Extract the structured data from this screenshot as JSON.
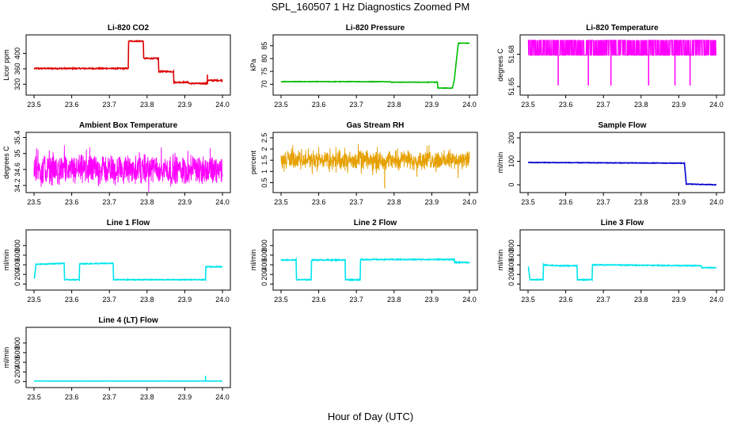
{
  "figure": {
    "title": "SPL_160507  1 Hz Diagnostics Zoomed PM",
    "xlabel": "Hour of Day (UTC)"
  },
  "chart_data": [
    {
      "type": "line",
      "title": "Li-820 CO2",
      "ylabel": "Licor ppm",
      "color": "#dd0000",
      "style": "step",
      "xlim": [
        23.5,
        24.0
      ],
      "ylim": [
        300,
        440
      ],
      "yticks": [
        320,
        360,
        400
      ],
      "x": [
        23.5,
        23.75,
        23.751,
        23.79,
        23.791,
        23.83,
        23.831,
        23.87,
        23.871,
        23.91,
        23.911,
        23.96,
        23.961,
        24.0
      ],
      "y": [
        361,
        361,
        432,
        432,
        387,
        387,
        353,
        353,
        325,
        325,
        322,
        322,
        330,
        330
      ],
      "noise": 1.5,
      "spike": {
        "x": 23.96,
        "y": 345
      }
    },
    {
      "type": "line",
      "title": "Li-820 Pressure",
      "ylabel": "kPa",
      "color": "#00bb00",
      "style": "step",
      "xlim": [
        23.5,
        24.0
      ],
      "ylim": [
        67,
        88
      ],
      "yticks": [
        70,
        75,
        80,
        85
      ],
      "x": [
        23.5,
        23.79,
        23.791,
        23.915,
        23.916,
        23.955,
        23.96,
        23.97,
        23.971,
        24.0
      ],
      "y": [
        71,
        71,
        70.8,
        70.8,
        68.5,
        68.5,
        72,
        85.5,
        86,
        86
      ],
      "noise": 0.1
    },
    {
      "type": "line",
      "title": "Li-820 Temperature",
      "ylabel": "degrees C",
      "color": "#ff00ff",
      "style": "band",
      "xlim": [
        23.5,
        24.0
      ],
      "ylim": [
        51.645,
        51.695
      ],
      "yticks": [
        51.65,
        51.68
      ],
      "bandLow": 51.679,
      "bandHigh": 51.693,
      "dips": [
        23.58,
        23.66,
        23.72,
        23.82,
        23.89,
        23.93
      ]
    },
    {
      "type": "line",
      "title": "Ambient Box Temperature",
      "ylabel": "degrees C",
      "color": "#ff00ff",
      "style": "band",
      "xlim": [
        23.5,
        24.0
      ],
      "ylim": [
        34.1,
        35.45
      ],
      "yticks": [
        34.2,
        34.6,
        35.0,
        35.4
      ],
      "bandLow": 34.3,
      "bandHigh": 34.9,
      "spread": 0.22
    },
    {
      "type": "line",
      "title": "Gas Stream RH",
      "ylabel": "percent",
      "color": "#e6a000",
      "style": "band",
      "xlim": [
        23.5,
        24.0
      ],
      "ylim": [
        0.2,
        2.6
      ],
      "yticks": [
        0.5,
        1.0,
        1.5,
        2.0,
        2.5
      ],
      "bandLow": 1.2,
      "bandHigh": 1.8,
      "spread": 0.35,
      "spike": {
        "x": 23.775,
        "y": 0.25
      }
    },
    {
      "type": "line",
      "title": "Sample Flow",
      "ylabel": "ml/min",
      "color": "#0000cc",
      "style": "step",
      "xlim": [
        23.5,
        24.0
      ],
      "ylim": [
        -20,
        210
      ],
      "yticks": [
        0,
        100,
        200
      ],
      "x": [
        23.5,
        23.91,
        23.915,
        23.92,
        24.0
      ],
      "y": [
        95,
        92,
        92,
        3,
        0
      ],
      "noise": 1.2
    },
    {
      "type": "line",
      "title": "Line 1 Flow",
      "ylabel": "ml/min",
      "color": "#00e5ee",
      "style": "step",
      "xlim": [
        23.5,
        24.0
      ],
      "ylim": [
        -60,
        1060
      ],
      "yticks": [
        0,
        200,
        400,
        600,
        800
      ],
      "x": [
        23.5,
        23.501,
        23.505,
        23.58,
        23.581,
        23.62,
        23.621,
        23.71,
        23.711,
        23.955,
        23.956,
        24.0
      ],
      "y": [
        120,
        120,
        410,
        430,
        90,
        90,
        420,
        430,
        90,
        90,
        360,
        360
      ],
      "noise": 8
    },
    {
      "type": "line",
      "title": "Line 2 Flow",
      "ylabel": "ml/min",
      "color": "#00e5ee",
      "style": "step",
      "xlim": [
        23.5,
        24.0
      ],
      "ylim": [
        -60,
        1060
      ],
      "yticks": [
        0,
        200,
        400,
        600,
        800
      ],
      "x": [
        23.5,
        23.54,
        23.541,
        23.58,
        23.581,
        23.67,
        23.671,
        23.71,
        23.711,
        23.96,
        23.961,
        24.0
      ],
      "y": [
        500,
        500,
        90,
        90,
        500,
        500,
        90,
        90,
        510,
        510,
        450,
        450
      ],
      "noise": 10
    },
    {
      "type": "line",
      "title": "Line 3 Flow",
      "ylabel": "ml/min",
      "color": "#00e5ee",
      "style": "step",
      "xlim": [
        23.5,
        24.0
      ],
      "ylim": [
        -60,
        1060
      ],
      "yticks": [
        0,
        200,
        400,
        600,
        800
      ],
      "x": [
        23.5,
        23.501,
        23.505,
        23.54,
        23.541,
        23.58,
        23.581,
        23.63,
        23.631,
        23.67,
        23.671,
        23.96,
        23.961,
        24.0
      ],
      "y": [
        350,
        350,
        90,
        90,
        400,
        380,
        380,
        380,
        90,
        90,
        400,
        380,
        340,
        340
      ],
      "noise": 9
    },
    {
      "type": "line",
      "title": "Line 4 (LT) Flow",
      "ylabel": "ml/min",
      "color": "#00e5ee",
      "style": "step",
      "xlim": [
        23.5,
        24.0
      ],
      "ylim": [
        -60,
        1060
      ],
      "yticks": [
        0,
        200,
        400,
        600,
        800
      ],
      "x": [
        23.5,
        24.0
      ],
      "y": [
        10,
        10
      ],
      "noise": 1,
      "spike": {
        "x": 23.955,
        "y": 120
      }
    }
  ],
  "xticks": [
    23.5,
    23.6,
    23.7,
    23.8,
    23.9,
    24.0
  ],
  "xtickLabels": [
    "23.5",
    "23.6",
    "23.7",
    "23.8",
    "23.9",
    "24.0"
  ]
}
